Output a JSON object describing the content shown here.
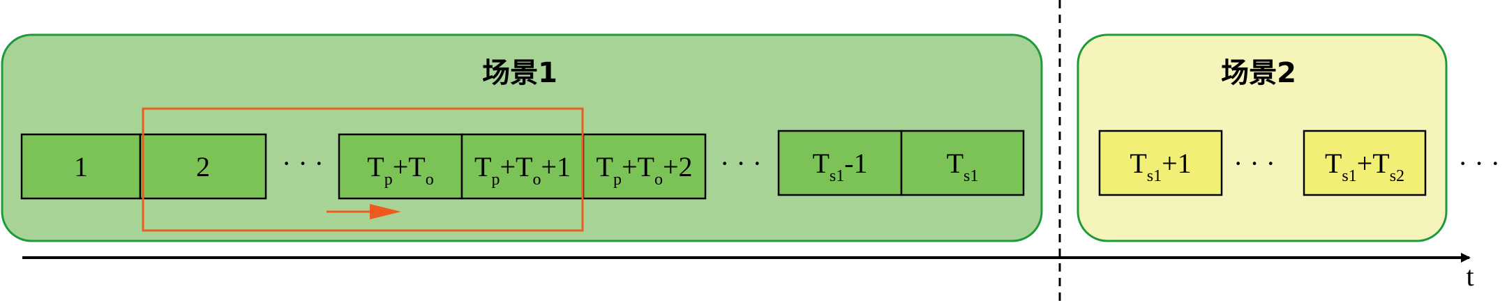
{
  "colors": {
    "scene1_fill": "#a7d396",
    "scene1_stroke": "#1e9a3a",
    "scene2_fill": "#f5f5bb",
    "scene2_stroke": "#1e9a3a",
    "cell_green": "#7bc257",
    "cell_yellow": "#f1ef76",
    "window": "#ef5a1e",
    "axis": "#000000"
  },
  "scene1": {
    "title": "场景1",
    "cells": [
      {
        "id": "c1",
        "main": "1"
      },
      {
        "id": "c2",
        "main": "2"
      },
      {
        "id": "c3",
        "parts": [
          {
            "t": "T"
          },
          {
            "t": "p",
            "sub": true
          },
          {
            "t": "+T"
          },
          {
            "t": "o",
            "sub": true
          }
        ]
      },
      {
        "id": "c4",
        "parts": [
          {
            "t": "T"
          },
          {
            "t": "p",
            "sub": true
          },
          {
            "t": "+T"
          },
          {
            "t": "o",
            "sub": true
          },
          {
            "t": "+1"
          }
        ]
      },
      {
        "id": "c5",
        "parts": [
          {
            "t": "T"
          },
          {
            "t": "p",
            "sub": true
          },
          {
            "t": "+T"
          },
          {
            "t": "o",
            "sub": true
          },
          {
            "t": "+2"
          }
        ]
      },
      {
        "id": "c6",
        "parts": [
          {
            "t": "T"
          },
          {
            "t": "s1",
            "sub": true
          },
          {
            "t": "-1"
          }
        ]
      },
      {
        "id": "c7",
        "parts": [
          {
            "t": "T"
          },
          {
            "t": "s1",
            "sub": true
          }
        ]
      }
    ]
  },
  "scene2": {
    "title": "场景2",
    "cells": [
      {
        "id": "d1",
        "parts": [
          {
            "t": "T"
          },
          {
            "t": "s1",
            "sub": true
          },
          {
            "t": "+1"
          }
        ]
      },
      {
        "id": "d2",
        "parts": [
          {
            "t": "T"
          },
          {
            "t": "s1",
            "sub": true
          },
          {
            "t": "+T"
          },
          {
            "t": "s2",
            "sub": true
          }
        ]
      }
    ]
  },
  "ellipsis": "· · ·",
  "axis_label": "t"
}
